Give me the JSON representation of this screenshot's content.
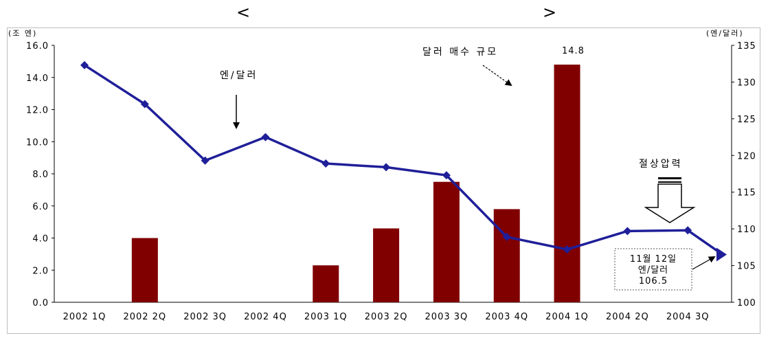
{
  "header": {
    "left_bracket": "<",
    "right_bracket": ">"
  },
  "chart_data": {
    "type": "bar+line",
    "categories": [
      "2002 1Q",
      "2002 2Q",
      "2002 3Q",
      "2002 4Q",
      "2003 1Q",
      "2003 2Q",
      "2003 3Q",
      "2003 4Q",
      "2004 1Q",
      "2004 2Q",
      "2004 3Q"
    ],
    "y_left": {
      "unit": "(조 엔)",
      "ylim": [
        0,
        16
      ],
      "ticks": [
        "0.0",
        "2.0",
        "4.0",
        "6.0",
        "8.0",
        "10.0",
        "12.0",
        "14.0",
        "16.0"
      ]
    },
    "y_right": {
      "unit": "(엔/달러)",
      "ylim": [
        100,
        135
      ],
      "ticks": [
        "100",
        "105",
        "110",
        "115",
        "120",
        "125",
        "130",
        "135"
      ]
    },
    "series": [
      {
        "kind": "bar",
        "axis": "left",
        "color": "#800000",
        "values": [
          0,
          4.0,
          0,
          0,
          2.3,
          4.6,
          7.5,
          5.8,
          14.8,
          0,
          0
        ]
      },
      {
        "kind": "line",
        "axis": "right",
        "color": "#1f1f99",
        "values": [
          132.3,
          127.0,
          119.3,
          122.5,
          118.9,
          118.4,
          117.3,
          108.9,
          107.2,
          109.7,
          109.8
        ]
      }
    ],
    "extra_point": {
      "value": 106.5
    },
    "labels": {
      "bar_peak": "14.8",
      "yen_dollar": "엔/달러",
      "buy_scale": "달러 매수 규모",
      "cut_pressure": "절상압력",
      "callout_line1": "11월 12일",
      "callout_line2": "엔/달러",
      "callout_line3": "106.5"
    },
    "grid": false,
    "legend": "none"
  }
}
